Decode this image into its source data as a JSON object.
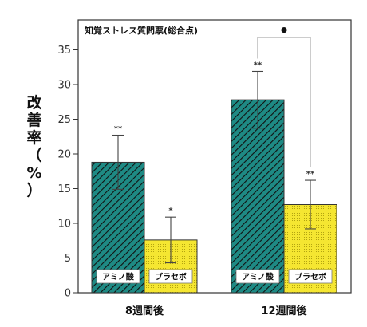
{
  "chart_data": {
    "type": "bar",
    "title": "知覚ストレス質問票(総合点)",
    "ylabel_chars": [
      "改",
      "善",
      "率",
      "（",
      "%",
      "）"
    ],
    "ylim": [
      0,
      37
    ],
    "yticks": [
      0,
      5,
      10,
      15,
      20,
      25,
      30,
      35
    ],
    "categories": [
      "8週間後",
      "12週間後"
    ],
    "series": [
      {
        "name": "アミノ酸",
        "values": [
          18.8,
          27.8
        ],
        "err": [
          3.9,
          4.1
        ],
        "sig": [
          "**",
          "**"
        ],
        "color": "#1e8a84"
      },
      {
        "name": "プラセボ",
        "values": [
          7.6,
          12.7
        ],
        "err": [
          3.3,
          3.5
        ],
        "sig": [
          "*",
          "**"
        ],
        "color": "#f5e631"
      }
    ],
    "comparison": {
      "category": "12週間後",
      "marker": "•"
    }
  }
}
